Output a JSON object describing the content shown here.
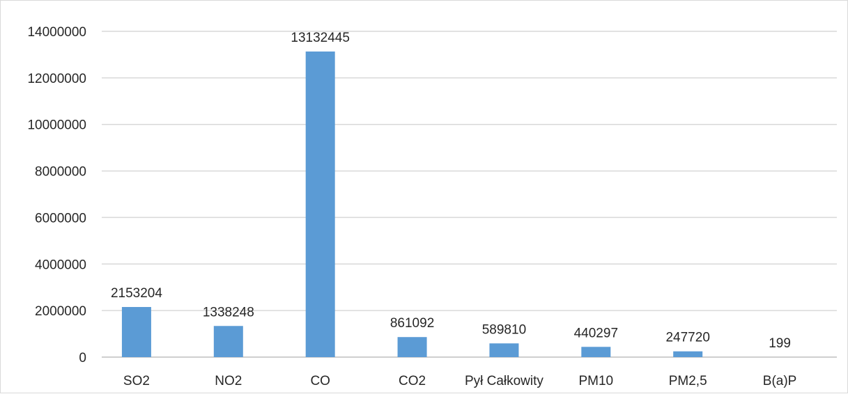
{
  "chart_data": {
    "type": "bar",
    "title": "",
    "xlabel": "",
    "ylabel": "",
    "categories": [
      "SO2",
      "NO2",
      "CO",
      "CO2",
      "Pył Całkowity",
      "PM10",
      "PM2,5",
      "B(a)P"
    ],
    "values": [
      2153204,
      1338248,
      13132445,
      861092,
      589810,
      440297,
      247720,
      199
    ],
    "data_labels": [
      "2153204",
      "1338248",
      "13132445",
      "861092",
      "589810",
      "440297",
      "247720",
      "199"
    ],
    "ylim": [
      0,
      14000000
    ],
    "yticks": [
      0,
      2000000,
      4000000,
      6000000,
      8000000,
      10000000,
      12000000,
      14000000
    ],
    "ytick_labels": [
      "0",
      "2000000",
      "4000000",
      "6000000",
      "8000000",
      "10000000",
      "12000000",
      "14000000"
    ],
    "grid": true,
    "legend": "none",
    "bar_color": "#5b9bd5"
  }
}
